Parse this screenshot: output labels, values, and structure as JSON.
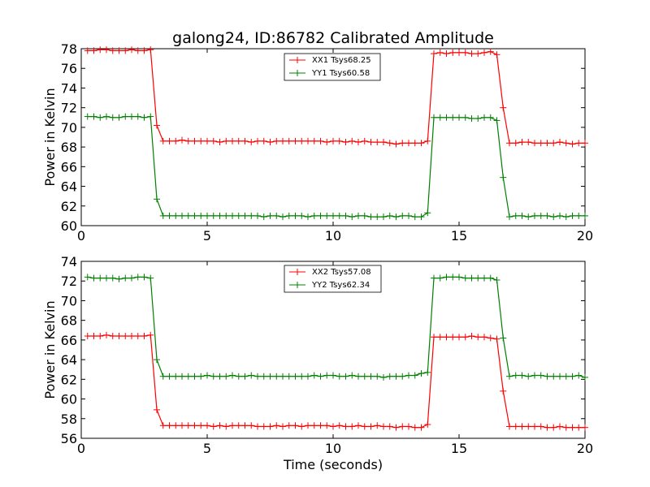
{
  "chart_data": [
    {
      "type": "line",
      "title": "galong24, ID:86782 Calibrated Amplitude",
      "xlabel": "",
      "ylabel": "Power in Kelvin",
      "xlim": [
        0,
        20
      ],
      "ylim": [
        60,
        78
      ],
      "xticks": [
        "0",
        "5",
        "10",
        "15",
        "20"
      ],
      "yticks": [
        "60",
        "62",
        "64",
        "66",
        "68",
        "70",
        "72",
        "74",
        "76",
        "78"
      ],
      "legend_position": "top-center",
      "grid": false,
      "x": [
        0.25,
        0.5,
        0.75,
        1.0,
        1.25,
        1.5,
        1.75,
        2.0,
        2.25,
        2.5,
        2.75,
        3.0,
        3.25,
        3.5,
        3.75,
        4.0,
        4.25,
        4.5,
        4.75,
        5.0,
        5.25,
        5.5,
        5.75,
        6.0,
        6.25,
        6.5,
        6.75,
        7.0,
        7.25,
        7.5,
        7.75,
        8.0,
        8.25,
        8.5,
        8.75,
        9.0,
        9.25,
        9.5,
        9.75,
        10.0,
        10.25,
        10.5,
        10.75,
        11.0,
        11.25,
        11.5,
        11.75,
        12.0,
        12.25,
        12.5,
        12.75,
        13.0,
        13.25,
        13.5,
        13.75,
        14.0,
        14.25,
        14.5,
        14.75,
        15.0,
        15.25,
        15.5,
        15.75,
        16.0,
        16.25,
        16.5,
        16.75,
        17.0,
        17.25,
        17.5,
        17.75,
        18.0,
        18.25,
        18.5,
        18.75,
        19.0,
        19.25,
        19.5,
        19.75,
        20.0
      ],
      "series": [
        {
          "name": "XX1 Tsys68.25",
          "color": "#ff0000",
          "values": [
            77.8,
            77.8,
            77.9,
            77.9,
            77.8,
            77.8,
            77.8,
            77.9,
            77.8,
            77.8,
            77.9,
            70.2,
            68.6,
            68.6,
            68.6,
            68.7,
            68.6,
            68.6,
            68.6,
            68.6,
            68.6,
            68.5,
            68.6,
            68.6,
            68.6,
            68.6,
            68.5,
            68.6,
            68.6,
            68.5,
            68.6,
            68.6,
            68.6,
            68.6,
            68.6,
            68.6,
            68.6,
            68.6,
            68.5,
            68.6,
            68.6,
            68.5,
            68.6,
            68.5,
            68.6,
            68.5,
            68.5,
            68.5,
            68.4,
            68.3,
            68.4,
            68.4,
            68.4,
            68.4,
            68.6,
            77.5,
            77.6,
            77.5,
            77.6,
            77.6,
            77.6,
            77.5,
            77.5,
            77.6,
            77.7,
            77.4,
            72.0,
            68.4,
            68.4,
            68.5,
            68.5,
            68.4,
            68.4,
            68.4,
            68.4,
            68.5,
            68.4,
            68.3,
            68.4,
            68.4
          ]
        },
        {
          "name": "YY1 Tsys60.58",
          "color": "#008000",
          "values": [
            71.1,
            71.1,
            71.0,
            71.1,
            71.0,
            71.0,
            71.1,
            71.1,
            71.1,
            71.0,
            71.1,
            62.7,
            61.0,
            61.0,
            61.0,
            61.0,
            61.0,
            61.0,
            61.0,
            61.0,
            61.0,
            61.0,
            61.0,
            61.0,
            61.0,
            61.0,
            61.0,
            61.0,
            60.9,
            61.0,
            61.0,
            60.9,
            61.0,
            61.0,
            61.0,
            60.9,
            61.0,
            61.0,
            61.0,
            61.0,
            61.0,
            61.0,
            60.9,
            61.0,
            61.0,
            60.9,
            60.9,
            60.9,
            61.0,
            60.9,
            61.0,
            61.0,
            60.9,
            60.9,
            61.3,
            71.0,
            71.0,
            71.0,
            71.0,
            71.0,
            71.0,
            70.9,
            70.9,
            71.0,
            71.0,
            70.7,
            64.9,
            60.9,
            61.0,
            61.0,
            60.9,
            61.0,
            61.0,
            61.0,
            60.9,
            61.0,
            60.9,
            61.0,
            61.0,
            61.0
          ]
        }
      ]
    },
    {
      "type": "line",
      "title": "",
      "xlabel": "Time (seconds)",
      "ylabel": "Power in Kelvin",
      "xlim": [
        0,
        20
      ],
      "ylim": [
        56,
        74
      ],
      "xticks": [
        "0",
        "5",
        "10",
        "15",
        "20"
      ],
      "yticks": [
        "56",
        "58",
        "60",
        "62",
        "64",
        "66",
        "68",
        "70",
        "72",
        "74"
      ],
      "legend_position": "top-center",
      "grid": false,
      "x": [
        0.25,
        0.5,
        0.75,
        1.0,
        1.25,
        1.5,
        1.75,
        2.0,
        2.25,
        2.5,
        2.75,
        3.0,
        3.25,
        3.5,
        3.75,
        4.0,
        4.25,
        4.5,
        4.75,
        5.0,
        5.25,
        5.5,
        5.75,
        6.0,
        6.25,
        6.5,
        6.75,
        7.0,
        7.25,
        7.5,
        7.75,
        8.0,
        8.25,
        8.5,
        8.75,
        9.0,
        9.25,
        9.5,
        9.75,
        10.0,
        10.25,
        10.5,
        10.75,
        11.0,
        11.25,
        11.5,
        11.75,
        12.0,
        12.25,
        12.5,
        12.75,
        13.0,
        13.25,
        13.5,
        13.75,
        14.0,
        14.25,
        14.5,
        14.75,
        15.0,
        15.25,
        15.5,
        15.75,
        16.0,
        16.25,
        16.5,
        16.75,
        17.0,
        17.25,
        17.5,
        17.75,
        18.0,
        18.25,
        18.5,
        18.75,
        19.0,
        19.25,
        19.5,
        19.75,
        20.0
      ],
      "series": [
        {
          "name": "XX2 Tsys57.08",
          "color": "#ff0000",
          "values": [
            66.4,
            66.4,
            66.4,
            66.5,
            66.4,
            66.4,
            66.4,
            66.4,
            66.4,
            66.4,
            66.5,
            58.9,
            57.3,
            57.3,
            57.3,
            57.3,
            57.3,
            57.3,
            57.3,
            57.3,
            57.2,
            57.3,
            57.2,
            57.3,
            57.3,
            57.3,
            57.3,
            57.2,
            57.2,
            57.2,
            57.3,
            57.2,
            57.3,
            57.3,
            57.2,
            57.3,
            57.3,
            57.3,
            57.3,
            57.2,
            57.3,
            57.2,
            57.2,
            57.3,
            57.2,
            57.2,
            57.3,
            57.2,
            57.2,
            57.1,
            57.2,
            57.2,
            57.1,
            57.1,
            57.4,
            66.3,
            66.3,
            66.3,
            66.3,
            66.3,
            66.3,
            66.4,
            66.3,
            66.3,
            66.2,
            66.1,
            60.8,
            57.2,
            57.2,
            57.2,
            57.2,
            57.2,
            57.2,
            57.1,
            57.1,
            57.2,
            57.1,
            57.1,
            57.1,
            57.1
          ]
        },
        {
          "name": "YY2 Tsys62.34",
          "color": "#008000",
          "values": [
            72.4,
            72.3,
            72.3,
            72.3,
            72.3,
            72.2,
            72.3,
            72.3,
            72.4,
            72.4,
            72.3,
            64.0,
            62.3,
            62.3,
            62.3,
            62.3,
            62.3,
            62.3,
            62.3,
            62.4,
            62.3,
            62.3,
            62.3,
            62.4,
            62.3,
            62.3,
            62.4,
            62.3,
            62.3,
            62.3,
            62.3,
            62.3,
            62.3,
            62.3,
            62.3,
            62.3,
            62.4,
            62.3,
            62.4,
            62.4,
            62.3,
            62.3,
            62.4,
            62.3,
            62.3,
            62.3,
            62.3,
            62.2,
            62.3,
            62.3,
            62.3,
            62.4,
            62.4,
            62.6,
            62.7,
            72.3,
            72.3,
            72.4,
            72.4,
            72.4,
            72.3,
            72.3,
            72.3,
            72.3,
            72.3,
            72.1,
            66.2,
            62.3,
            62.4,
            62.4,
            62.3,
            62.4,
            62.4,
            62.3,
            62.3,
            62.3,
            62.3,
            62.3,
            62.4,
            62.2
          ]
        }
      ]
    }
  ]
}
